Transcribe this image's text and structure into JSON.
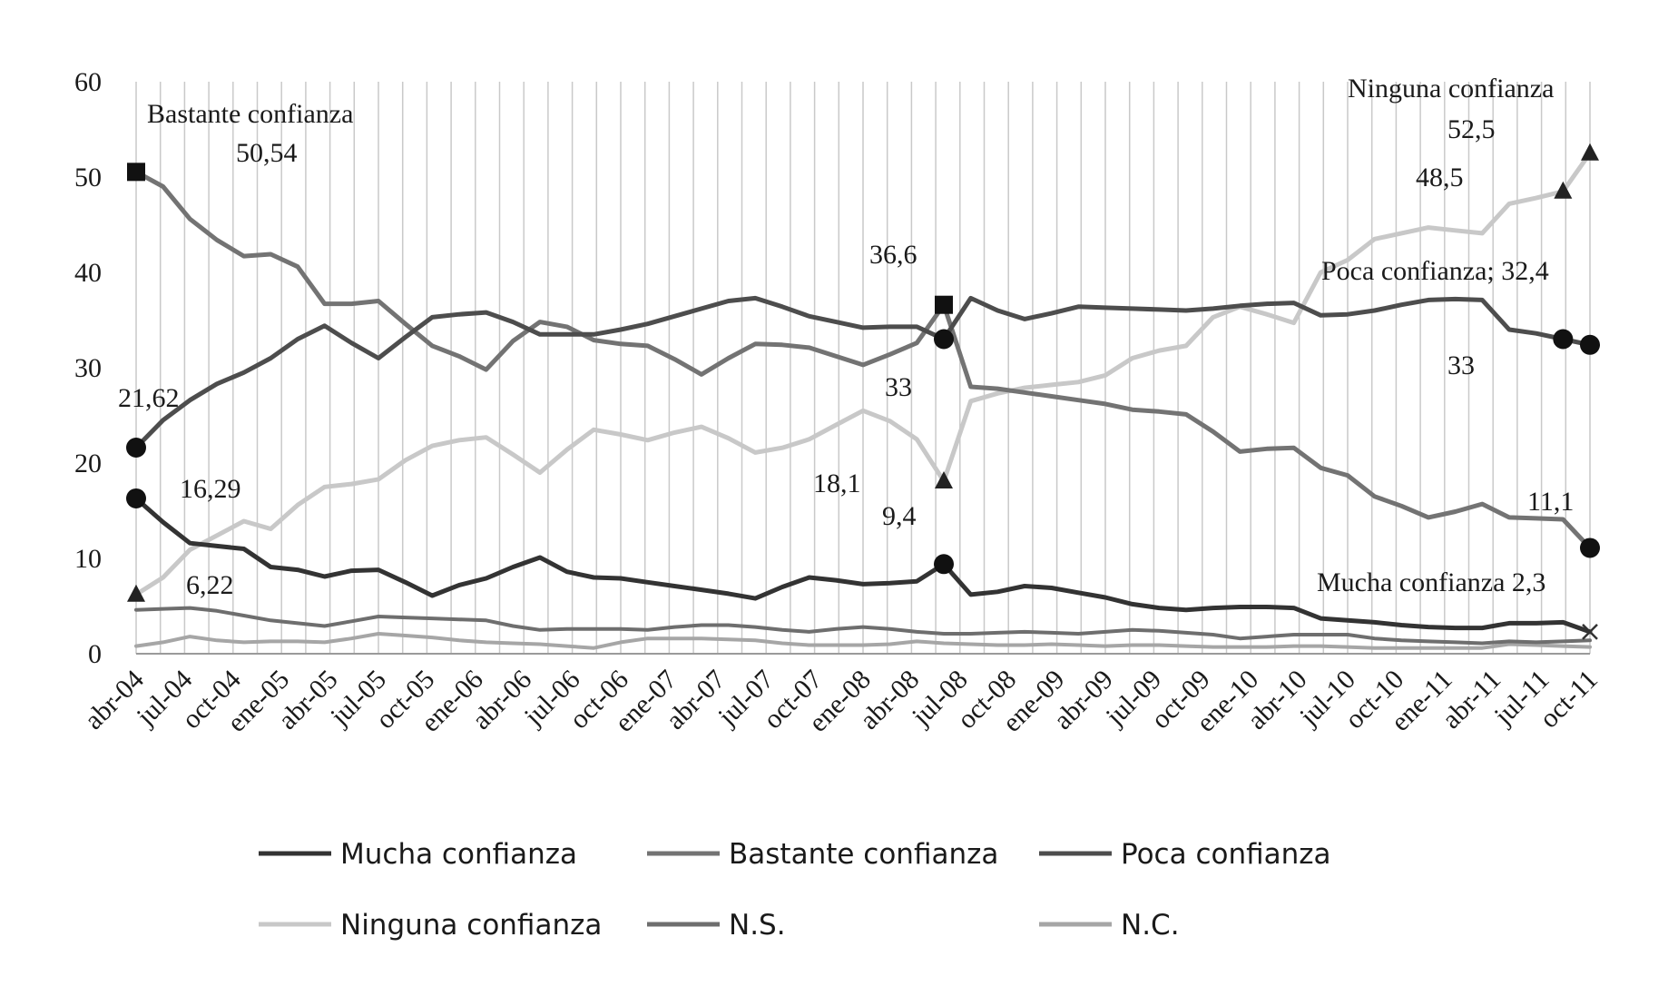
{
  "chart_data": {
    "type": "line",
    "title": "",
    "xlabel": "",
    "ylabel": "",
    "ylim": [
      0,
      60
    ],
    "yticks": [
      0,
      10,
      20,
      30,
      40,
      50,
      60
    ],
    "grid": "vertical",
    "legend_position": "bottom",
    "categories": [
      "abr-04",
      "jul-04",
      "oct-04",
      "ene-05",
      "abr-05",
      "jul-05",
      "oct-05",
      "ene-06",
      "abr-06",
      "jul-06",
      "oct-06",
      "ene-07",
      "abr-07",
      "jul-07",
      "oct-07",
      "ene-08",
      "abr-08",
      "jul-08",
      "oct-08",
      "ene-09",
      "abr-09",
      "jul-09",
      "oct-09",
      "ene-10",
      "abr-10",
      "jul-10",
      "oct-10",
      "ene-11",
      "abr-11",
      "jul-11",
      "oct-11"
    ],
    "x": [
      "abr-04",
      "may-04",
      "jul-04",
      "sep-04",
      "oct-04",
      "ene-05",
      "mar-05",
      "abr-05",
      "jun-05",
      "jul-05",
      "sep-05",
      "oct-05",
      "dic-05",
      "ene-06",
      "mar-06",
      "abr-06",
      "jun-06",
      "jul-06",
      "sep-06",
      "oct-06",
      "dic-06",
      "ene-07",
      "mar-07",
      "abr-07",
      "jun-07",
      "jul-07",
      "sep-07",
      "oct-07",
      "dic-07",
      "ene-08",
      "abr-08",
      "may-08",
      "jul-08",
      "sep-08",
      "oct-08",
      "dic-08",
      "ene-09",
      "abr-09",
      "may-09",
      "jul-09",
      "sep-09",
      "oct-09",
      "dic-09",
      "ene-10",
      "abr-10",
      "may-10",
      "jul-10",
      "sep-10",
      "oct-10",
      "dic-10",
      "ene-11",
      "abr-11",
      "may-11",
      "jul-11",
      "oct-11"
    ],
    "series": [
      {
        "name": "Mucha confianza",
        "color": "#333333",
        "width": 5,
        "values": [
          16.29,
          13.8,
          11.6,
          11.3,
          11.0,
          9.1,
          8.8,
          8.1,
          8.7,
          8.8,
          7.5,
          6.1,
          7.2,
          7.9,
          9.1,
          10.1,
          8.6,
          8.0,
          7.9,
          7.5,
          7.1,
          6.7,
          6.3,
          5.8,
          7.0,
          8.0,
          7.7,
          7.3,
          7.4,
          7.6,
          9.4,
          6.2,
          6.5,
          7.1,
          6.9,
          6.4,
          5.9,
          5.2,
          4.8,
          4.6,
          4.8,
          4.9,
          4.9,
          4.8,
          3.7,
          3.5,
          3.3,
          3.0,
          2.8,
          2.7,
          2.7,
          3.2,
          3.2,
          3.3,
          2.3
        ]
      },
      {
        "name": "Bastante confianza",
        "color": "#737373",
        "width": 5,
        "values": [
          50.54,
          49.0,
          45.6,
          43.4,
          41.7,
          41.9,
          40.6,
          36.7,
          36.7,
          37.0,
          34.6,
          32.3,
          31.2,
          29.8,
          32.8,
          34.8,
          34.3,
          32.9,
          32.5,
          32.3,
          30.9,
          29.3,
          31.0,
          32.5,
          32.4,
          32.1,
          31.2,
          30.3,
          31.4,
          32.6,
          36.6,
          28.0,
          27.8,
          27.4,
          27.0,
          26.6,
          26.2,
          25.6,
          25.4,
          25.1,
          23.3,
          21.2,
          21.5,
          21.6,
          19.5,
          18.7,
          16.5,
          15.5,
          14.3,
          14.9,
          15.7,
          14.3,
          14.2,
          14.1,
          11.1
        ]
      },
      {
        "name": "Poca confianza",
        "color": "#4d4d4d",
        "width": 5,
        "values": [
          21.62,
          24.5,
          26.6,
          28.3,
          29.5,
          31.0,
          33.0,
          34.4,
          32.6,
          31.0,
          33.2,
          35.3,
          35.6,
          35.8,
          34.8,
          33.5,
          33.5,
          33.5,
          34.0,
          34.6,
          35.4,
          36.2,
          37.0,
          37.3,
          36.4,
          35.4,
          34.8,
          34.2,
          34.3,
          34.3,
          33,
          37.3,
          36.0,
          35.1,
          35.7,
          36.4,
          36.3,
          36.2,
          36.1,
          36.0,
          36.2,
          36.5,
          36.7,
          36.8,
          35.5,
          35.6,
          36.0,
          36.6,
          37.1,
          37.2,
          37.1,
          34.0,
          33.6,
          33,
          32.4
        ]
      },
      {
        "name": "Ninguna confianza",
        "color": "#c8c8c8",
        "width": 5,
        "values": [
          6.22,
          8.0,
          10.9,
          12.4,
          13.9,
          13.1,
          15.6,
          17.5,
          17.8,
          18.3,
          20.3,
          21.8,
          22.4,
          22.7,
          20.9,
          19.0,
          21.4,
          23.5,
          23.0,
          22.4,
          23.2,
          23.8,
          22.6,
          21.1,
          21.6,
          22.5,
          24.0,
          25.5,
          24.4,
          22.5,
          18.1,
          26.5,
          27.3,
          27.9,
          28.2,
          28.5,
          29.2,
          31.0,
          31.8,
          32.3,
          35.3,
          36.4,
          35.6,
          34.7,
          40.0,
          41.3,
          43.5,
          44.1,
          44.7,
          44.4,
          44.1,
          47.2,
          47.8,
          48.5,
          52.5
        ]
      },
      {
        "name": "N.S.",
        "color": "#6e6e6e",
        "width": 4,
        "values": [
          4.6,
          4.7,
          4.8,
          4.5,
          4.0,
          3.5,
          3.2,
          2.9,
          3.4,
          3.9,
          3.8,
          3.7,
          3.6,
          3.5,
          2.9,
          2.5,
          2.6,
          2.6,
          2.6,
          2.5,
          2.8,
          3.0,
          3.0,
          2.8,
          2.5,
          2.3,
          2.6,
          2.8,
          2.6,
          2.3,
          2.1,
          2.1,
          2.2,
          2.3,
          2.2,
          2.1,
          2.3,
          2.5,
          2.4,
          2.2,
          2.0,
          1.6,
          1.8,
          2.0,
          2.0,
          2.0,
          1.6,
          1.4,
          1.3,
          1.2,
          1.1,
          1.3,
          1.2,
          1.3,
          1.4
        ]
      },
      {
        "name": "N.C.",
        "color": "#a6a6a6",
        "width": 4,
        "values": [
          0.8,
          1.2,
          1.8,
          1.4,
          1.2,
          1.3,
          1.3,
          1.2,
          1.6,
          2.1,
          1.9,
          1.7,
          1.4,
          1.2,
          1.1,
          1.0,
          0.8,
          0.6,
          1.2,
          1.6,
          1.6,
          1.6,
          1.5,
          1.4,
          1.1,
          0.9,
          0.9,
          0.9,
          1.0,
          1.3,
          1.1,
          1.0,
          0.9,
          0.9,
          1.0,
          0.9,
          0.8,
          0.9,
          0.9,
          0.8,
          0.7,
          0.7,
          0.7,
          0.8,
          0.8,
          0.7,
          0.6,
          0.6,
          0.6,
          0.6,
          0.6,
          1.0,
          0.9,
          0.8,
          0.7
        ]
      }
    ],
    "markers": [
      {
        "series": "Bastante confianza",
        "index": 0,
        "shape": "square"
      },
      {
        "series": "Bastante confianza",
        "index": 30,
        "shape": "square"
      },
      {
        "series": "Bastante confianza",
        "index": 54,
        "shape": "circle"
      },
      {
        "series": "Poca confianza",
        "index": 0,
        "shape": "circle"
      },
      {
        "series": "Poca confianza",
        "index": 30,
        "shape": "circle"
      },
      {
        "series": "Poca confianza",
        "index": 53,
        "shape": "circle"
      },
      {
        "series": "Poca confianza",
        "index": 54,
        "shape": "circle"
      },
      {
        "series": "Mucha confianza",
        "index": 0,
        "shape": "circle"
      },
      {
        "series": "Mucha confianza",
        "index": 30,
        "shape": "circle"
      },
      {
        "series": "Mucha confianza",
        "index": 54,
        "shape": "x"
      },
      {
        "series": "Ninguna confianza",
        "index": 0,
        "shape": "triangle"
      },
      {
        "series": "Ninguna confianza",
        "index": 30,
        "shape": "triangle"
      },
      {
        "series": "Ninguna confianza",
        "index": 53,
        "shape": "triangle"
      },
      {
        "series": "Ninguna confianza",
        "index": 54,
        "shape": "triangle"
      }
    ],
    "annotations": [
      {
        "name": "annotation-bastante-label",
        "text": "Bastante confianza"
      },
      {
        "name": "annotation-bastante-start",
        "text": "50,54"
      },
      {
        "name": "annotation-bastante-mid",
        "text": "36,6"
      },
      {
        "name": "annotation-bastante-end",
        "text": "11,1"
      },
      {
        "name": "annotation-poca-start",
        "text": "21,62"
      },
      {
        "name": "annotation-poca-mid",
        "text": "33"
      },
      {
        "name": "annotation-poca-label",
        "text": "Poca confianza; 32,4"
      },
      {
        "name": "annotation-poca-jul11",
        "text": "33"
      },
      {
        "name": "annotation-mucha-start",
        "text": "16,29"
      },
      {
        "name": "annotation-mucha-mid",
        "text": "9,4"
      },
      {
        "name": "annotation-mucha-label",
        "text": "Mucha confianza 2,3"
      },
      {
        "name": "annotation-ninguna-start",
        "text": "6,22"
      },
      {
        "name": "annotation-ninguna-mid",
        "text": "18,1"
      },
      {
        "name": "annotation-ninguna-label",
        "text": "Ninguna confianza"
      },
      {
        "name": "annotation-ninguna-end",
        "text": "52,5"
      },
      {
        "name": "annotation-ninguna-jul11",
        "text": "48,5"
      }
    ],
    "legend": [
      "Mucha confianza",
      "Bastante confianza",
      "Poca confianza",
      "Ninguna confianza",
      "N.S.",
      "N.C."
    ]
  }
}
